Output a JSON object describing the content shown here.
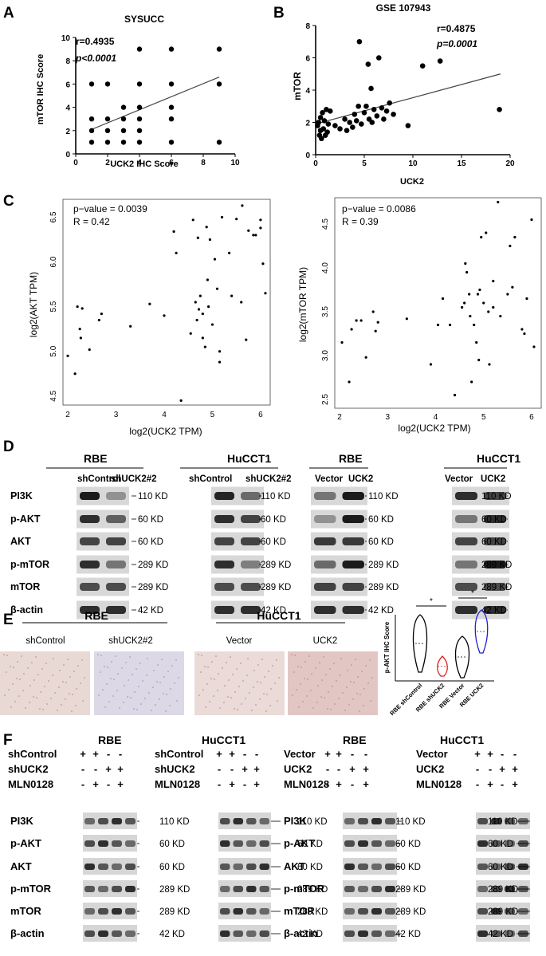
{
  "panels": {
    "A": {
      "letter": "A",
      "title": "SYSUCC",
      "xlabel": "UCK2 IHC Score",
      "ylabel": "mTOR IHC Score",
      "stat_r": "r=0.4935",
      "stat_p": "p<0.0001",
      "xticks": [
        "0",
        "2",
        "4",
        "6",
        "8",
        "10"
      ],
      "yticks": [
        "0",
        "2",
        "4",
        "6",
        "8",
        "10"
      ]
    },
    "B": {
      "letter": "B",
      "title": "GSE 107943",
      "xlabel": "UCK2",
      "ylabel": "mTOR",
      "stat_r": "r=0.4875",
      "stat_p": "p=0.0001",
      "xticks": [
        "0",
        "5",
        "10",
        "15",
        "20"
      ],
      "yticks": [
        "0",
        "2",
        "4",
        "6",
        "8"
      ]
    },
    "C": {
      "letter": "C",
      "left": {
        "stat_p": "p−value = 0.0039",
        "stat_r": "R = 0.42",
        "xlabel": "log2(UCK2 TPM)",
        "ylabel": "log2(AKT TPM)",
        "xticks": [
          "2",
          "3",
          "4",
          "5",
          "6"
        ],
        "yticks": [
          "4.5",
          "5.0",
          "5.5",
          "6.0",
          "6.5"
        ]
      },
      "right": {
        "stat_p": "p−value = 0.0086",
        "stat_r": "R = 0.39",
        "xlabel": "log2(UCK2 TPM)",
        "ylabel": "log2(mTOR TPM)",
        "xticks": [
          "2",
          "3",
          "4",
          "5",
          "6"
        ],
        "yticks": [
          "2.5",
          "3.0",
          "3.5",
          "4.0",
          "4.5"
        ]
      }
    },
    "D": {
      "letter": "D",
      "groups": [
        {
          "cell": "RBE",
          "lanes": [
            "shControl",
            "shUCK2#2"
          ]
        },
        {
          "cell": "HuCCT1",
          "lanes": [
            "shControl",
            "shUCK2#2"
          ]
        },
        {
          "cell": "RBE",
          "lanes": [
            "Vector",
            "UCK2"
          ]
        },
        {
          "cell": "HuCCT1",
          "lanes": [
            "Vector",
            "UCK2"
          ]
        }
      ],
      "proteins": [
        "PI3K",
        "p-AKT",
        "AKT",
        "p-mTOR",
        "mTOR",
        "β-actin"
      ],
      "weights": [
        "110 KD",
        "60 KD",
        "60 KD",
        "289 KD",
        "289 KD",
        "42 KD"
      ]
    },
    "E": {
      "letter": "E",
      "groups": [
        {
          "cell": "RBE",
          "lanes": [
            "shControl",
            "shUCK2#2"
          ]
        },
        {
          "cell": "HuCCT1",
          "lanes": [
            "Vector",
            "UCK2"
          ]
        }
      ],
      "violin_ylabel": "p-AKT IHC Score",
      "violin_categories": [
        "RBE shControl",
        "RBE shUCK2",
        "RBE Vector",
        "RBE UCK2"
      ],
      "significance": [
        "*",
        "*"
      ]
    },
    "F": {
      "letter": "F",
      "left": {
        "cells": [
          "RBE",
          "HuCCT1"
        ],
        "rows": [
          {
            "label": "shControl",
            "signs": [
              "+",
              "+",
              "-",
              "-"
            ]
          },
          {
            "label": "shUCK2",
            "signs": [
              "-",
              "-",
              "+",
              "+"
            ]
          },
          {
            "label": "MLN0128",
            "signs": [
              "-",
              "+",
              "-",
              "+"
            ]
          }
        ]
      },
      "right": {
        "cells": [
          "RBE",
          "HuCCT1"
        ],
        "rows": [
          {
            "label": "Vector",
            "signs": [
              "+",
              "+",
              "-",
              "-"
            ]
          },
          {
            "label": "UCK2",
            "signs": [
              "-",
              "-",
              "+",
              "+"
            ]
          },
          {
            "label": "MLN0128",
            "signs": [
              "-",
              "+",
              "-",
              "+"
            ]
          }
        ]
      },
      "proteins": [
        "PI3K",
        "p-AKT",
        "AKT",
        "p-mTOR",
        "mTOR",
        "β-actin"
      ],
      "weights": [
        "110 KD",
        "60 KD",
        "60 KD",
        "289 KD",
        "289 KD",
        "42 KD"
      ]
    }
  },
  "chart_data": [
    {
      "type": "scatter",
      "title": "SYSUCC",
      "xlabel": "UCK2 IHC Score",
      "ylabel": "mTOR IHC Score",
      "xlim": [
        0,
        10
      ],
      "ylim": [
        0,
        10
      ],
      "points": [
        [
          1,
          1
        ],
        [
          1,
          2
        ],
        [
          1,
          3
        ],
        [
          1,
          6
        ],
        [
          2,
          1
        ],
        [
          2,
          2
        ],
        [
          2,
          3
        ],
        [
          2,
          6
        ],
        [
          3,
          1
        ],
        [
          3,
          2
        ],
        [
          3,
          3
        ],
        [
          3,
          4
        ],
        [
          4,
          1
        ],
        [
          4,
          2
        ],
        [
          4,
          3
        ],
        [
          4,
          4
        ],
        [
          4,
          6
        ],
        [
          4,
          9
        ],
        [
          6,
          1
        ],
        [
          6,
          3
        ],
        [
          6,
          4
        ],
        [
          6,
          6
        ],
        [
          6,
          9
        ],
        [
          9,
          1
        ],
        [
          9,
          6
        ],
        [
          9,
          9
        ]
      ],
      "fit": [
        [
          1,
          2.1
        ],
        [
          9,
          6.6
        ]
      ]
    },
    {
      "type": "scatter",
      "title": "GSE 107943",
      "xlabel": "UCK2",
      "ylabel": "mTOR",
      "xlim": [
        0,
        20
      ],
      "ylim": [
        0,
        8
      ],
      "points": [
        [
          0.2,
          1.8
        ],
        [
          0.3,
          2.0
        ],
        [
          0.4,
          1.2
        ],
        [
          0.5,
          2.3
        ],
        [
          0.5,
          1.5
        ],
        [
          0.6,
          1.0
        ],
        [
          0.7,
          2.6
        ],
        [
          0.8,
          1.6
        ],
        [
          0.9,
          2.1
        ],
        [
          1.0,
          1.2
        ],
        [
          1.1,
          2.8
        ],
        [
          1.2,
          1.4
        ],
        [
          1.3,
          1.9
        ],
        [
          1.5,
          2.7
        ],
        [
          2.0,
          1.8
        ],
        [
          2.5,
          1.6
        ],
        [
          3.0,
          2.2
        ],
        [
          3.2,
          1.5
        ],
        [
          3.5,
          2.0
        ],
        [
          3.8,
          1.7
        ],
        [
          4.0,
          2.5
        ],
        [
          4.2,
          2.1
        ],
        [
          4.4,
          3.0
        ],
        [
          4.5,
          7.0
        ],
        [
          4.7,
          1.9
        ],
        [
          5.0,
          2.6
        ],
        [
          5.2,
          3.0
        ],
        [
          5.4,
          5.6
        ],
        [
          5.5,
          2.2
        ],
        [
          5.7,
          4.1
        ],
        [
          5.8,
          2.0
        ],
        [
          6.0,
          2.8
        ],
        [
          6.3,
          2.4
        ],
        [
          6.5,
          6.0
        ],
        [
          6.8,
          2.9
        ],
        [
          7.0,
          2.2
        ],
        [
          7.3,
          2.7
        ],
        [
          7.6,
          3.2
        ],
        [
          8.0,
          2.5
        ],
        [
          9.5,
          1.8
        ],
        [
          11.0,
          5.5
        ],
        [
          12.8,
          5.8
        ],
        [
          18.9,
          2.8
        ]
      ],
      "fit": [
        [
          0,
          1.9
        ],
        [
          19,
          5.0
        ]
      ]
    },
    {
      "type": "scatter",
      "xlabel": "log2(UCK2 TPM)",
      "ylabel": "log2(AKT TPM)",
      "xlim": [
        1.9,
        6.2
      ],
      "ylim": [
        4.4,
        6.7
      ],
      "points": [
        [
          2.0,
          4.95
        ],
        [
          2.15,
          4.75
        ],
        [
          2.2,
          5.5
        ],
        [
          2.25,
          5.25
        ],
        [
          2.27,
          5.15
        ],
        [
          2.3,
          5.48
        ],
        [
          2.45,
          5.02
        ],
        [
          2.65,
          5.35
        ],
        [
          2.7,
          5.42
        ],
        [
          3.3,
          5.28
        ],
        [
          3.7,
          5.53
        ],
        [
          4.0,
          5.4
        ],
        [
          4.2,
          6.34
        ],
        [
          4.25,
          6.1
        ],
        [
          4.35,
          4.45
        ],
        [
          4.55,
          5.2
        ],
        [
          4.6,
          6.47
        ],
        [
          4.65,
          5.55
        ],
        [
          4.68,
          5.35
        ],
        [
          4.7,
          6.27
        ],
        [
          4.72,
          5.47
        ],
        [
          4.75,
          5.62
        ],
        [
          4.8,
          5.15
        ],
        [
          4.8,
          5.42
        ],
        [
          4.85,
          5.05
        ],
        [
          4.88,
          6.39
        ],
        [
          4.9,
          5.8
        ],
        [
          4.92,
          5.5
        ],
        [
          4.95,
          6.25
        ],
        [
          5.0,
          5.3
        ],
        [
          5.05,
          6.03
        ],
        [
          5.1,
          5.7
        ],
        [
          5.15,
          5.0
        ],
        [
          5.15,
          4.88
        ],
        [
          5.2,
          6.5
        ],
        [
          5.35,
          6.1
        ],
        [
          5.4,
          5.62
        ],
        [
          5.5,
          6.48
        ],
        [
          5.6,
          5.55
        ],
        [
          5.62,
          6.63
        ],
        [
          5.7,
          5.13
        ],
        [
          5.75,
          6.35
        ],
        [
          5.85,
          6.3
        ],
        [
          5.9,
          6.3
        ],
        [
          6.0,
          6.47
        ],
        [
          6.0,
          6.38
        ],
        [
          6.05,
          5.98
        ],
        [
          6.1,
          5.65
        ]
      ]
    },
    {
      "type": "scatter",
      "xlabel": "log2(UCK2 TPM)",
      "ylabel": "log2(mTOR TPM)",
      "xlim": [
        1.9,
        6.2
      ],
      "ylim": [
        2.4,
        4.8
      ],
      "points": [
        [
          2.05,
          3.15
        ],
        [
          2.2,
          2.7
        ],
        [
          2.25,
          3.3
        ],
        [
          2.35,
          3.4
        ],
        [
          2.45,
          3.4
        ],
        [
          2.55,
          2.98
        ],
        [
          2.7,
          3.5
        ],
        [
          2.75,
          3.28
        ],
        [
          2.8,
          3.38
        ],
        [
          3.4,
          3.42
        ],
        [
          3.9,
          2.9
        ],
        [
          4.05,
          3.35
        ],
        [
          4.15,
          3.65
        ],
        [
          4.3,
          3.35
        ],
        [
          4.4,
          2.55
        ],
        [
          4.55,
          3.55
        ],
        [
          4.6,
          3.6
        ],
        [
          4.62,
          4.05
        ],
        [
          4.65,
          3.95
        ],
        [
          4.7,
          3.7
        ],
        [
          4.72,
          3.45
        ],
        [
          4.75,
          2.7
        ],
        [
          4.8,
          3.35
        ],
        [
          4.85,
          3.15
        ],
        [
          4.88,
          3.7
        ],
        [
          4.9,
          2.95
        ],
        [
          4.92,
          3.75
        ],
        [
          4.95,
          4.35
        ],
        [
          5.0,
          3.6
        ],
        [
          5.05,
          4.4
        ],
        [
          5.1,
          3.5
        ],
        [
          5.12,
          2.9
        ],
        [
          5.2,
          3.55
        ],
        [
          5.2,
          3.85
        ],
        [
          5.3,
          4.75
        ],
        [
          5.35,
          3.45
        ],
        [
          5.5,
          3.7
        ],
        [
          5.55,
          4.25
        ],
        [
          5.6,
          3.78
        ],
        [
          5.65,
          4.35
        ],
        [
          5.8,
          3.3
        ],
        [
          5.85,
          3.25
        ],
        [
          5.9,
          3.65
        ],
        [
          6.0,
          4.55
        ],
        [
          6.05,
          3.1
        ]
      ]
    }
  ]
}
